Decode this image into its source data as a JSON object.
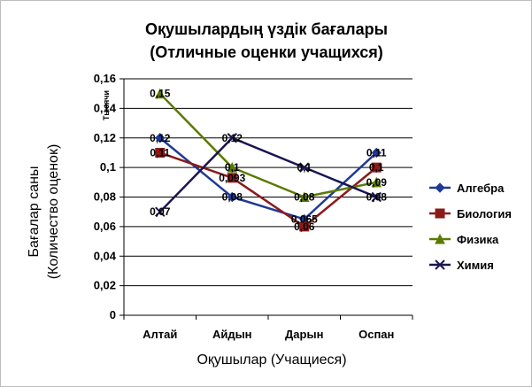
{
  "chart_data": {
    "type": "line",
    "title_line1": "Оқушылардың үздік бағалары",
    "title_line2": "(Отличные оценки учащихся)",
    "xlabel": "Оқушылар (Учащиеся)",
    "ylabel_line1": "Бағалар саны",
    "ylabel_line2": "(Количество оценок)",
    "y_unit_label": "Тысячи",
    "categories": [
      "Алтай",
      "Айдын",
      "Дарын",
      "Оспан"
    ],
    "ylim": [
      0,
      0.16
    ],
    "y_ticks": [
      0,
      0.02,
      0.04,
      0.06,
      0.08,
      0.1,
      0.12,
      0.14,
      0.16
    ],
    "y_tick_labels": [
      "0",
      "0,02",
      "0,04",
      "0,06",
      "0,08",
      "0,1",
      "0,12",
      "0,14",
      "0,16"
    ],
    "grid": true,
    "legend_position": "right",
    "series": [
      {
        "name": "Алгебра",
        "values": [
          0.12,
          0.08,
          0.065,
          0.11
        ],
        "labels": [
          "0,12",
          "0,08",
          "0,065",
          "0,11"
        ],
        "color": "#1F3A93",
        "marker": "diamond"
      },
      {
        "name": "Биология",
        "values": [
          0.11,
          0.093,
          0.06,
          0.1
        ],
        "labels": [
          "0,11",
          "0,093",
          "0,06",
          "0,1"
        ],
        "color": "#8B1A1A",
        "marker": "square"
      },
      {
        "name": "Физика",
        "values": [
          0.15,
          0.1,
          0.08,
          0.09
        ],
        "labels": [
          "0,15",
          "0,1",
          "0,08",
          "0,09"
        ],
        "color": "#5A7A00",
        "marker": "triangle"
      },
      {
        "name": "Химия",
        "values": [
          0.07,
          0.12,
          0.1,
          0.08
        ],
        "labels": [
          "0,07",
          "0,12",
          "0,1",
          "0,08"
        ],
        "color": "#1A1550",
        "marker": "x"
      }
    ]
  }
}
